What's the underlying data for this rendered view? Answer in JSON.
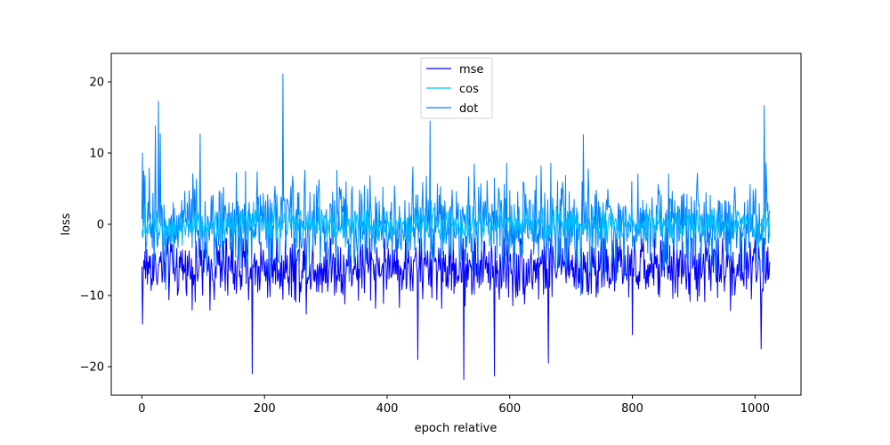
{
  "chart_data": {
    "type": "line",
    "title": "",
    "xlabel": "epoch relative",
    "ylabel": "loss",
    "xlim": [
      -50,
      1075
    ],
    "ylim": [
      -24,
      24
    ],
    "xticks": [
      0,
      200,
      400,
      600,
      800,
      1000
    ],
    "yticks": [
      -20,
      -10,
      0,
      10,
      20
    ],
    "x_range": [
      0,
      1024
    ],
    "grid": false,
    "legend_position": "top-center",
    "series": [
      {
        "name": "mse",
        "color": "#0000ff",
        "summary": {
          "center": -6,
          "typical_low": -11,
          "typical_high": -3,
          "min": -21.5,
          "max": -2
        },
        "spikes": [
          [
            1,
            -14
          ],
          [
            180,
            -21
          ],
          [
            450,
            -19
          ],
          [
            525,
            -21.8
          ],
          [
            575,
            -21.3
          ],
          [
            663,
            -19.5
          ],
          [
            800,
            -15.5
          ],
          [
            1010,
            -17.5
          ]
        ]
      },
      {
        "name": "cos",
        "color": "#00bfff",
        "summary": {
          "center": 0,
          "typical_low": -2,
          "typical_high": 2
        }
      },
      {
        "name": "dot",
        "color": "#0080ff",
        "summary": {
          "center": 0,
          "typical_low": -5,
          "typical_high": 6,
          "min": -10,
          "max": 21
        },
        "spikes": [
          [
            1,
            10
          ],
          [
            22,
            13.8
          ],
          [
            27,
            17.3
          ],
          [
            30,
            12.7
          ],
          [
            95,
            12.7
          ],
          [
            230,
            21.1
          ],
          [
            470,
            14.5
          ],
          [
            720,
            12.6
          ],
          [
            1015,
            16.7
          ]
        ]
      }
    ]
  }
}
